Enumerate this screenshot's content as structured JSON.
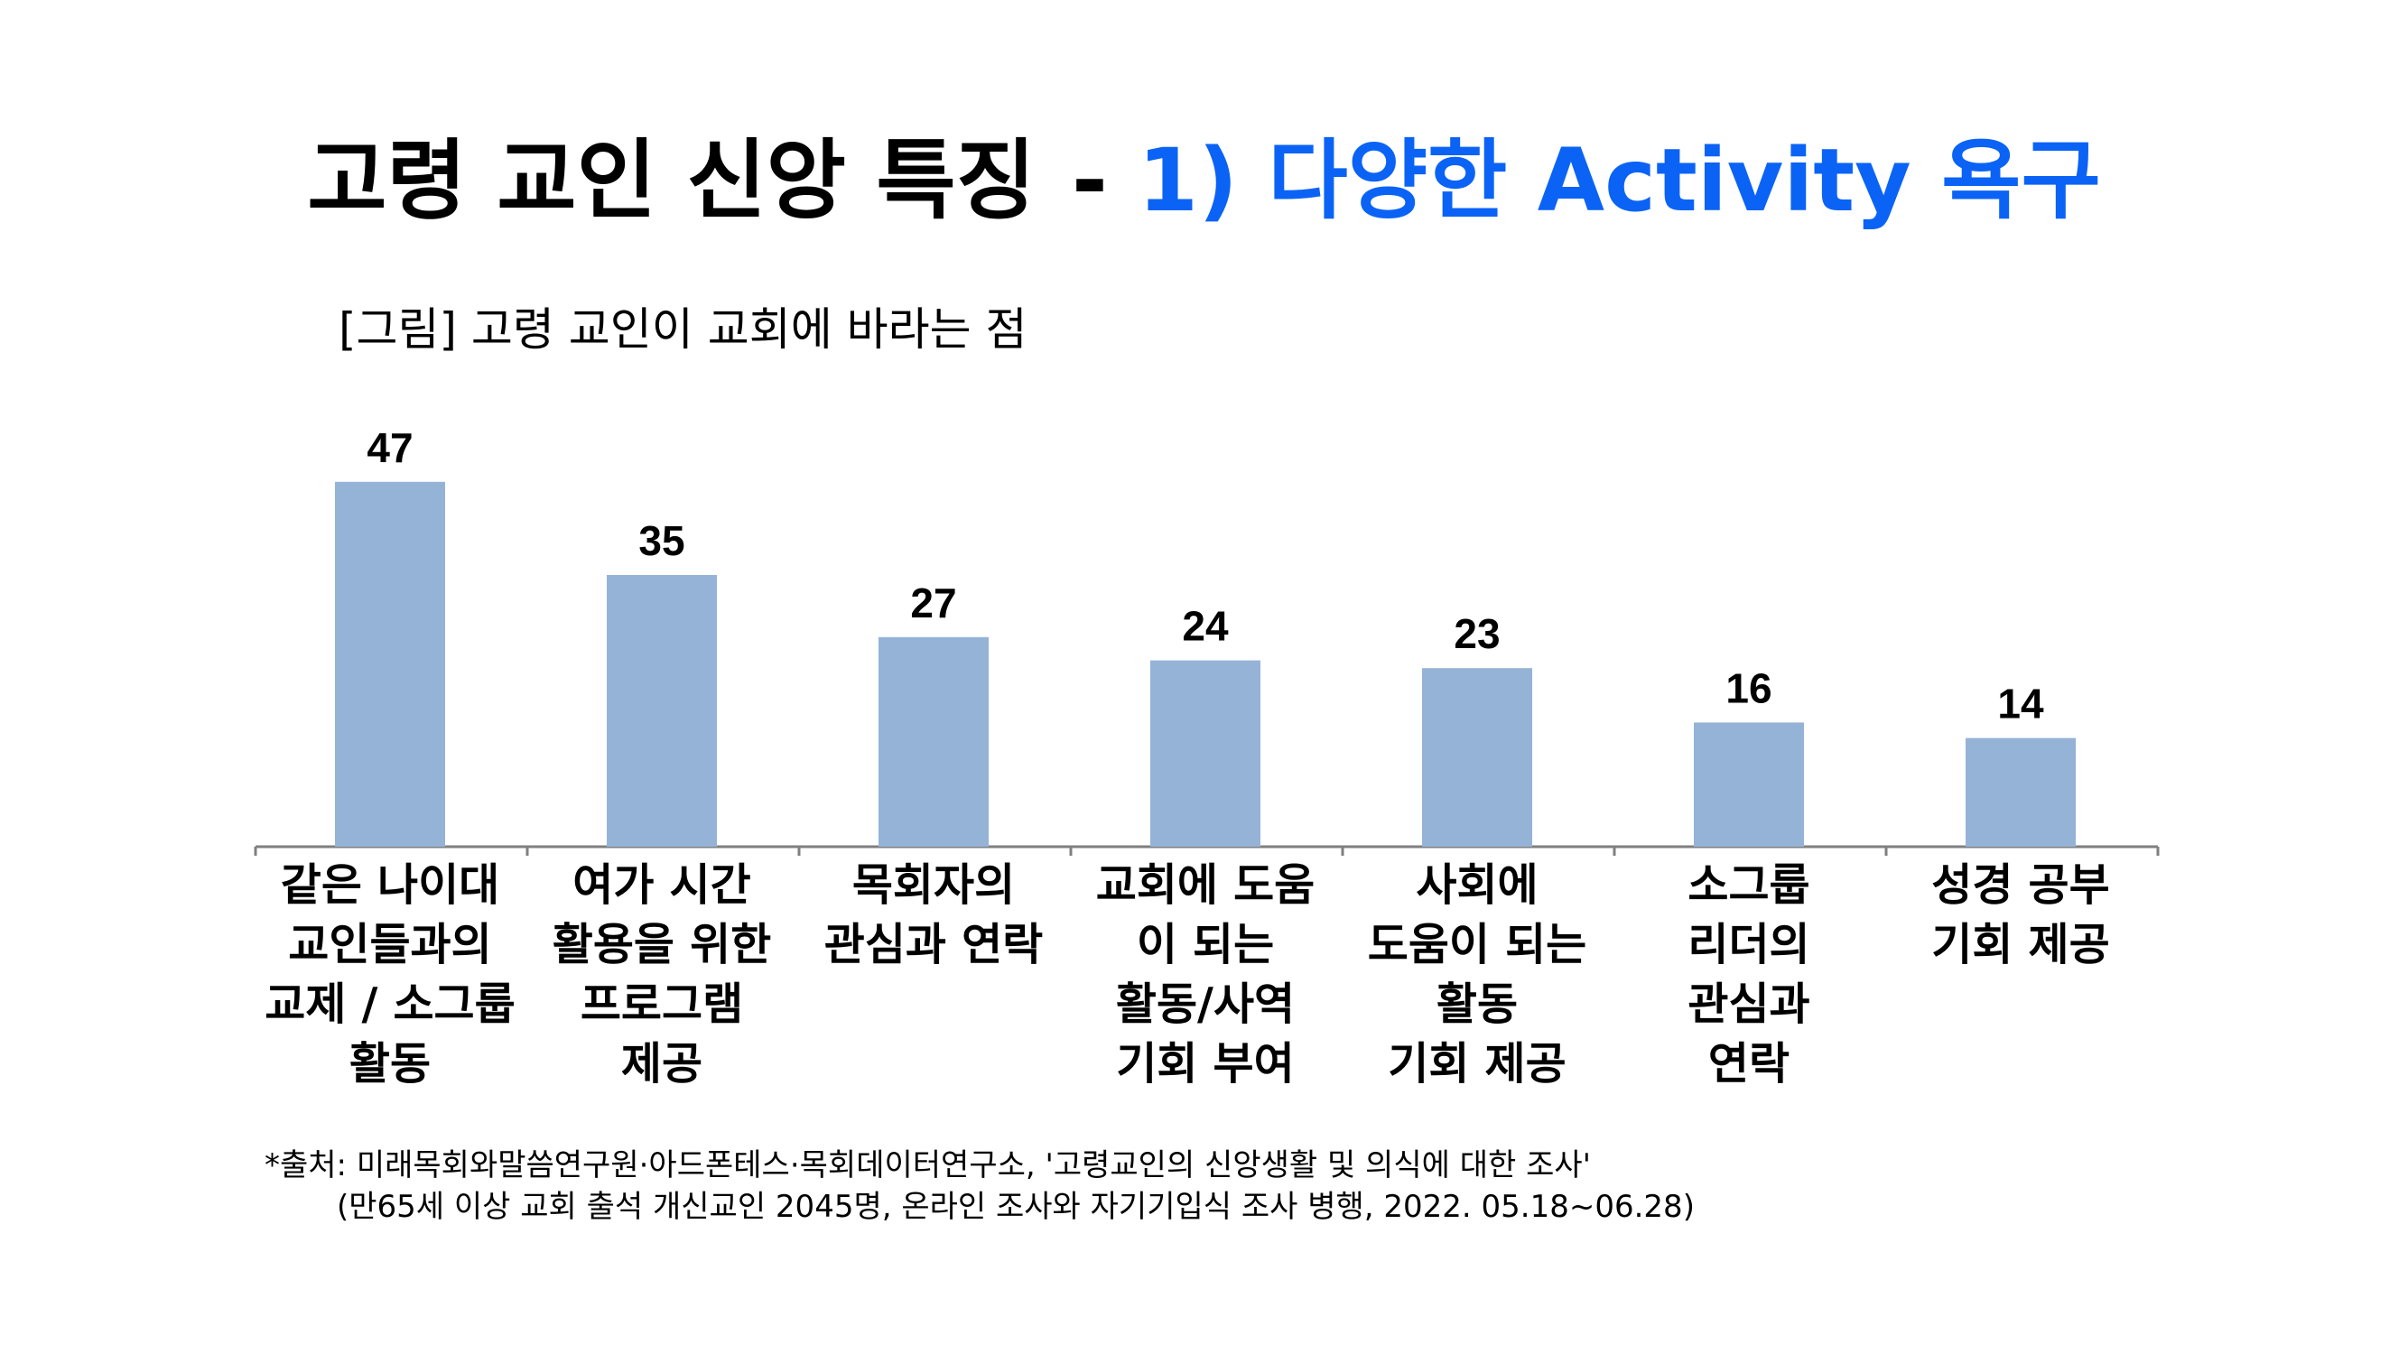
{
  "title": {
    "main": "고령 교인 신앙 특징",
    "dash": "-",
    "accent": "1) 다양한 Activity 욕구"
  },
  "subtitle": "[그림] 고령 교인이 교회에 바라는 점",
  "colors": {
    "bar": "#95b3d7",
    "axis": "#7f7f7f",
    "accent": "#0b63f6"
  },
  "chart_data": {
    "type": "bar",
    "title": "[그림] 고령 교인이 교회에 바라는 점",
    "xlabel": "",
    "ylabel": "",
    "ylim": [
      0,
      47
    ],
    "grid": false,
    "categories": [
      [
        "같은 나이대",
        "교인들과의",
        "교제 / 소그룹",
        "활동"
      ],
      [
        "여가 시간",
        "활용을 위한",
        "프로그램",
        "제공"
      ],
      [
        "목회자의",
        "관심과 연락"
      ],
      [
        "교회에 도움",
        "이 되는",
        "활동/사역",
        "기회 부여"
      ],
      [
        "사회에",
        "도움이 되는",
        "활동",
        "기회 제공"
      ],
      [
        "소그룹",
        "리더의",
        "관심과",
        "연락"
      ],
      [
        "성경 공부",
        "기회 제공"
      ]
    ],
    "values": [
      47,
      35,
      27,
      24,
      23,
      16,
      14
    ]
  },
  "footnote": {
    "line1": "*출처: 미래목회와말씀연구원·아드폰테스·목회데이터연구소, '고령교인의 신앙생활 및 의식에 대한 조사'",
    "line2": "(만65세 이상 교회 출석 개신교인 2045명, 온라인 조사와 자기기입식 조사 병행, 2022. 05.18~06.28)"
  }
}
